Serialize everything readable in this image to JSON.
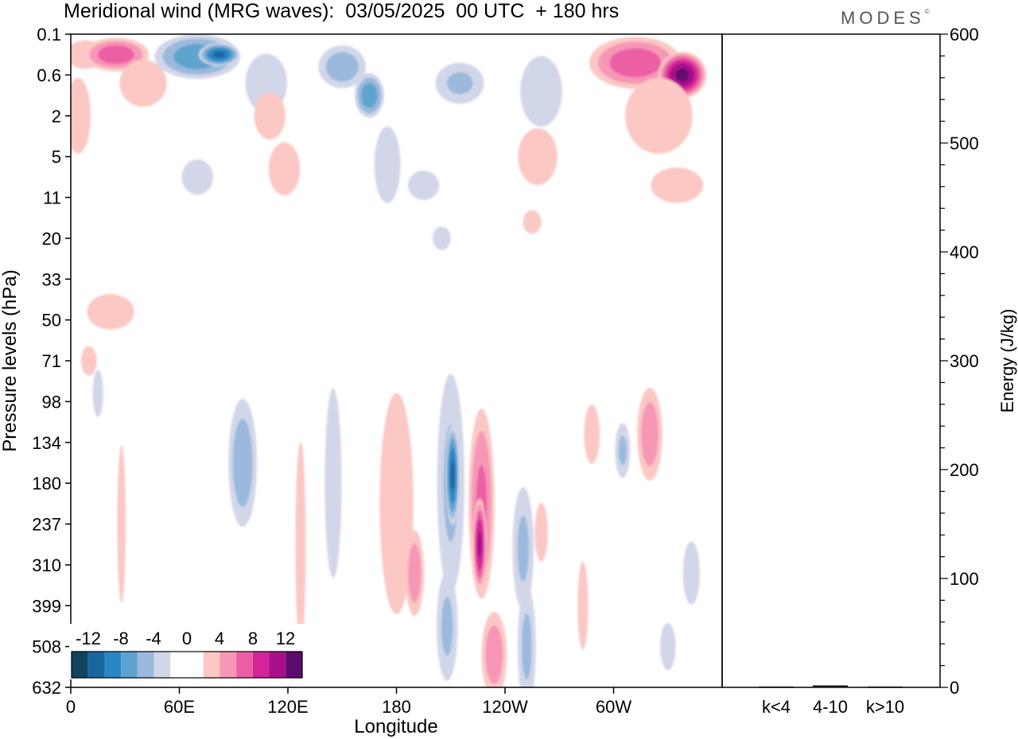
{
  "header": {
    "title": "Meridional wind (MRG waves):  03/05/2025  00 UTC  + 180 hrs",
    "brand": "MODES",
    "brand_mark": "©"
  },
  "chart_data": [
    {
      "type": "heatmap",
      "title": "Meridional wind (MRG waves):  03/05/2025  00 UTC  + 180 hrs",
      "xlabel": "Longitude",
      "ylabel": "Pressure levels (hPa)",
      "x_ticks": [
        "0",
        "60E",
        "120E",
        "180",
        "120W",
        "60W"
      ],
      "x_tick_degrees": [
        0,
        60,
        120,
        180,
        240,
        300
      ],
      "xlim": [
        0,
        360
      ],
      "y_ticks": [
        "0.1",
        "0.6",
        "2",
        "5",
        "11",
        "20",
        "33",
        "50",
        "71",
        "98",
        "134",
        "180",
        "237",
        "310",
        "399",
        "508",
        "632"
      ],
      "y_axis": "pressure levels (top to bottom)",
      "colorbar": {
        "labels": [
          "-12",
          "-8",
          "-4",
          "0",
          "4",
          "8",
          "12"
        ],
        "levels": [
          -14,
          -12,
          -10,
          -8,
          -6,
          -4,
          -2,
          0,
          2,
          4,
          6,
          8,
          10,
          12,
          14
        ],
        "colors": [
          "#12445f",
          "#1a67a0",
          "#2b87c4",
          "#5ea3cf",
          "#9ab9dc",
          "#d2d6e9",
          "#ffffff",
          "#ffffff",
          "#fbc8c4",
          "#f697b6",
          "#ec5fa4",
          "#d3259a",
          "#a8108a",
          "#5e0a6e"
        ]
      },
      "features": [
        {
          "lon": 8,
          "level": 0.5,
          "dlon": 14,
          "dlev": 0.45,
          "value": 3
        },
        {
          "lon": 4,
          "level": 2.0,
          "dlon": 9,
          "dlev": 1.2,
          "value": 3
        },
        {
          "lon": 25,
          "level": 0.5,
          "dlon": 20,
          "dlev": 0.45,
          "value": 7
        },
        {
          "lon": 40,
          "level": 1.2,
          "dlon": 18,
          "dlev": 0.8,
          "value": 2.5
        },
        {
          "lon": 70,
          "level": 0.55,
          "dlon": 26,
          "dlev": 0.6,
          "value": -7
        },
        {
          "lon": 82,
          "level": 0.5,
          "dlon": 12,
          "dlev": 0.3,
          "value": -10
        },
        {
          "lon": 108,
          "level": 1.2,
          "dlon": 16,
          "dlev": 1.0,
          "value": -2.5
        },
        {
          "lon": 150,
          "level": 0.8,
          "dlon": 15,
          "dlev": 0.6,
          "value": -5
        },
        {
          "lon": 165,
          "level": 1.5,
          "dlon": 9,
          "dlev": 0.6,
          "value": -7
        },
        {
          "lon": 215,
          "level": 1.2,
          "dlon": 16,
          "dlev": 0.6,
          "value": -4
        },
        {
          "lon": 260,
          "level": 1.4,
          "dlon": 16,
          "dlev": 1.2,
          "value": -2.5
        },
        {
          "lon": 312,
          "level": 0.7,
          "dlon": 28,
          "dlev": 0.7,
          "value": 7
        },
        {
          "lon": 338,
          "level": 1.0,
          "dlon": 14,
          "dlev": 0.6,
          "value": 12
        },
        {
          "lon": 325,
          "level": 2.0,
          "dlon": 24,
          "dlev": 1.2,
          "value": 3
        },
        {
          "lon": 110,
          "level": 2.0,
          "dlon": 12,
          "dlev": 0.8,
          "value": 2.5
        },
        {
          "lon": 175,
          "level": 3.2,
          "dlon": 10,
          "dlev": 1.3,
          "value": -2.5
        },
        {
          "lon": 118,
          "level": 3.3,
          "dlon": 12,
          "dlev": 0.9,
          "value": 2.5
        },
        {
          "lon": 258,
          "level": 3.0,
          "dlon": 14,
          "dlev": 0.9,
          "value": 3
        },
        {
          "lon": 70,
          "level": 3.5,
          "dlon": 12,
          "dlev": 0.6,
          "value": -2.5
        },
        {
          "lon": 335,
          "level": 3.7,
          "dlon": 20,
          "dlev": 0.6,
          "value": 2.5
        },
        {
          "lon": 195,
          "level": 3.7,
          "dlon": 12,
          "dlev": 0.5,
          "value": -2.5
        },
        {
          "lon": 255,
          "level": 4.6,
          "dlon": 7,
          "dlev": 0.4,
          "value": 2.5
        },
        {
          "lon": 205,
          "level": 5.0,
          "dlon": 7,
          "dlev": 0.4,
          "value": -2.5
        },
        {
          "lon": 22,
          "level": 6.8,
          "dlon": 18,
          "dlev": 0.6,
          "value": 2.5
        },
        {
          "lon": 15,
          "level": 8.8,
          "dlon": 4,
          "dlev": 0.8,
          "value": -2.5
        },
        {
          "lon": 95,
          "level": 10.5,
          "dlon": 9,
          "dlev": 1.8,
          "value": -5
        },
        {
          "lon": 28,
          "level": 12.0,
          "dlon": 3,
          "dlev": 2.5,
          "value": 3
        },
        {
          "lon": 127,
          "level": 12.5,
          "dlon": 4,
          "dlev": 3.5,
          "value": 2.5
        },
        {
          "lon": 145,
          "level": 11.0,
          "dlon": 6,
          "dlev": 3.0,
          "value": -3
        },
        {
          "lon": 180,
          "level": 11.5,
          "dlon": 12,
          "dlev": 3.5,
          "value": 3
        },
        {
          "lon": 190,
          "level": 13.2,
          "dlon": 6,
          "dlev": 1.2,
          "value": 5
        },
        {
          "lon": 210,
          "level": 11.0,
          "dlon": 9,
          "dlev": 3.2,
          "value": -4
        },
        {
          "lon": 211,
          "level": 10.8,
          "dlon": 4,
          "dlev": 1.3,
          "value": -10
        },
        {
          "lon": 208,
          "level": 14.5,
          "dlon": 7,
          "dlev": 1.6,
          "value": -4
        },
        {
          "lon": 227,
          "level": 11.5,
          "dlon": 8,
          "dlev": 2.6,
          "value": 6
        },
        {
          "lon": 226,
          "level": 12.5,
          "dlon": 4,
          "dlev": 1.2,
          "value": 10
        },
        {
          "lon": 234,
          "level": 15.2,
          "dlon": 8,
          "dlev": 1.2,
          "value": 5
        },
        {
          "lon": 250,
          "level": 12.6,
          "dlon": 7,
          "dlev": 1.8,
          "value": -4
        },
        {
          "lon": 252,
          "level": 15.0,
          "dlon": 6,
          "dlev": 1.8,
          "value": -4
        },
        {
          "lon": 260,
          "level": 12.2,
          "dlon": 5,
          "dlev": 1.0,
          "value": 2.5
        },
        {
          "lon": 283,
          "level": 14.0,
          "dlon": 4,
          "dlev": 1.5,
          "value": 2.5
        },
        {
          "lon": 288,
          "level": 9.8,
          "dlon": 6,
          "dlev": 1.0,
          "value": 2.5
        },
        {
          "lon": 305,
          "level": 10.2,
          "dlon": 5,
          "dlev": 0.8,
          "value": -4
        },
        {
          "lon": 320,
          "level": 9.8,
          "dlon": 8,
          "dlev": 1.3,
          "value": 5
        },
        {
          "lon": 343,
          "level": 13.2,
          "dlon": 6,
          "dlev": 1.0,
          "value": -3
        },
        {
          "lon": 330,
          "level": 15.0,
          "dlon": 6,
          "dlev": 0.8,
          "value": -2.5
        },
        {
          "lon": 10,
          "level": 8.0,
          "dlon": 6,
          "dlev": 0.5,
          "value": 2.5
        }
      ]
    },
    {
      "type": "bar",
      "categories": [
        "k<4",
        "4-10",
        "k>10"
      ],
      "values": [
        0,
        1,
        0
      ],
      "ylabel": "Energy (J/kg)",
      "ylim": [
        0,
        600
      ],
      "y_ticks": [
        "0",
        "100",
        "200",
        "300",
        "400",
        "500",
        "600"
      ]
    }
  ]
}
